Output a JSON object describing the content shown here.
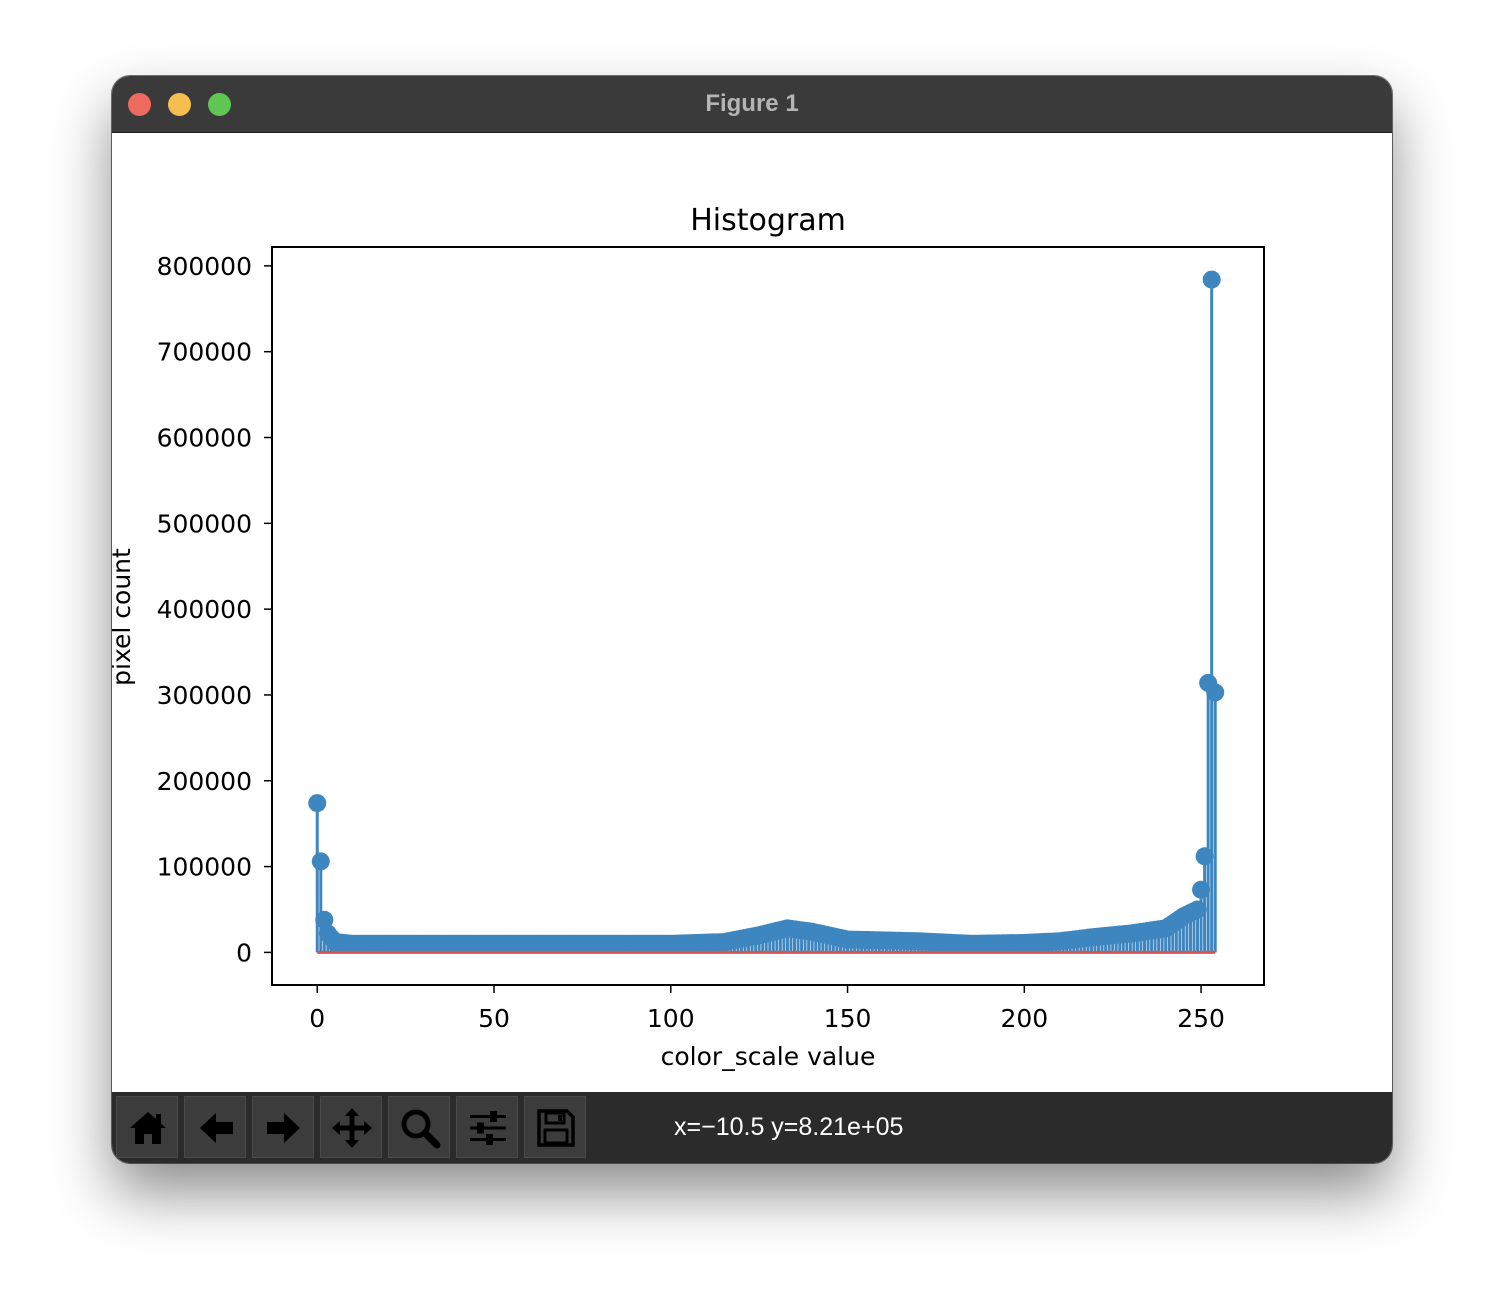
{
  "window": {
    "title": "Figure 1"
  },
  "toolbar": {
    "buttons": [
      {
        "icon": "home-icon"
      },
      {
        "icon": "arrow-left-icon"
      },
      {
        "icon": "arrow-right-icon"
      },
      {
        "icon": "move-icon"
      },
      {
        "icon": "zoom-icon"
      },
      {
        "icon": "sliders-icon"
      },
      {
        "icon": "save-icon"
      }
    ],
    "coords": "x=−10.5 y=8.21e+05"
  },
  "chart_data": {
    "type": "stem",
    "title": "Histogram",
    "xlabel": "color_scale value",
    "ylabel": "pixel count",
    "xlim": [
      -12.8,
      267.8
    ],
    "ylim": [
      -38000,
      822000
    ],
    "xticks": [
      0,
      50,
      100,
      150,
      200,
      250
    ],
    "yticks": [
      0,
      100000,
      200000,
      300000,
      400000,
      500000,
      600000,
      700000,
      800000
    ],
    "colors": {
      "stem": "#3e86bf",
      "baseline": "#d9534f"
    },
    "highlighted_points": [
      {
        "x": 0,
        "y": 174000
      },
      {
        "x": 1,
        "y": 106000
      },
      {
        "x": 2,
        "y": 38000
      },
      {
        "x": 250,
        "y": 73000
      },
      {
        "x": 251,
        "y": 112000
      },
      {
        "x": 252,
        "y": 314000
      },
      {
        "x": 253,
        "y": 784000
      },
      {
        "x": 254,
        "y": 303000
      }
    ],
    "profile": [
      {
        "x": 3,
        "y": 22000
      },
      {
        "x": 5,
        "y": 12000
      },
      {
        "x": 10,
        "y": 10000
      },
      {
        "x": 50,
        "y": 10000
      },
      {
        "x": 100,
        "y": 10000
      },
      {
        "x": 115,
        "y": 12000
      },
      {
        "x": 125,
        "y": 20000
      },
      {
        "x": 133,
        "y": 28000
      },
      {
        "x": 140,
        "y": 24000
      },
      {
        "x": 150,
        "y": 15000
      },
      {
        "x": 170,
        "y": 13000
      },
      {
        "x": 185,
        "y": 10000
      },
      {
        "x": 200,
        "y": 11000
      },
      {
        "x": 210,
        "y": 13000
      },
      {
        "x": 220,
        "y": 18000
      },
      {
        "x": 230,
        "y": 22000
      },
      {
        "x": 240,
        "y": 28000
      },
      {
        "x": 245,
        "y": 42000
      },
      {
        "x": 249,
        "y": 50000
      }
    ]
  }
}
